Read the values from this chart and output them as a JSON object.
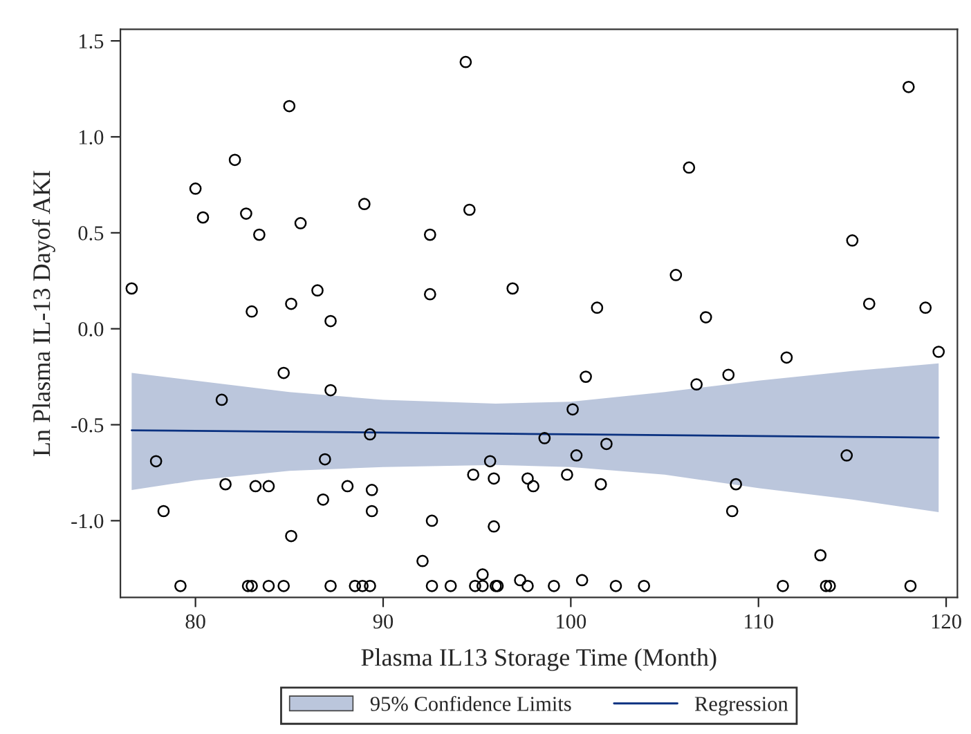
{
  "chart_data": {
    "type": "scatter",
    "xlabel": "Plasma IL13 Storage Time (Month)",
    "ylabel": "Ln Plasma IL-13 Dayof AKI",
    "annotations": [
      "95% Confidence Limits"
    ],
    "xlim": [
      76.0,
      120.6
    ],
    "ylim": [
      -1.4,
      1.56
    ],
    "xticks": [
      80,
      90,
      100,
      110,
      120
    ],
    "yticks": [
      {
        "value": -1,
        "label": "-1.0"
      },
      {
        "value": -0.5,
        "label": "-0.5"
      },
      {
        "value": 0,
        "label": "0.0"
      },
      {
        "value": 0.5,
        "label": "0.5"
      },
      {
        "value": 1,
        "label": "1.0"
      },
      {
        "value": 1.5,
        "label": "1.5"
      }
    ],
    "grid": false,
    "legend": "bottom",
    "series": [
      {
        "color": "#000000",
        "marker": "circle",
        "x": [
          76.6,
          80.0,
          80.4,
          82.1,
          82.7,
          83.4,
          83.0,
          85.0,
          85.6,
          85.1,
          86.5,
          87.2,
          89.0,
          92.5,
          92.5,
          94.4,
          94.6,
          106.3,
          118.0,
          96.9,
          101.4,
          105.6,
          107.2,
          115.0,
          115.9,
          118.9,
          84.7,
          87.2,
          81.4,
          89.3,
          77.9,
          86.9,
          81.6,
          83.2,
          83.9,
          88.1,
          89.4,
          86.8,
          78.3,
          89.4,
          85.1,
          92.6,
          92.1,
          95.3,
          94.8,
          95.7,
          95.9,
          95.9,
          100.1,
          100.8,
          106.7,
          108.4,
          111.5,
          119.6,
          98.6,
          100.3,
          101.9,
          114.7,
          97.7,
          98.0,
          99.8,
          101.6,
          108.8,
          108.6,
          113.3,
          97.3,
          100.6,
          79.2,
          82.8,
          83.0,
          83.9,
          84.7,
          87.2,
          88.5,
          88.9,
          89.3,
          92.6,
          93.6,
          94.9,
          95.3,
          96.0,
          96.1,
          97.7,
          99.1,
          102.4,
          103.9,
          111.3,
          113.6,
          113.8,
          118.1
        ],
        "values": [
          0.21,
          0.73,
          0.58,
          0.88,
          0.6,
          0.49,
          0.09,
          1.16,
          0.55,
          0.13,
          0.2,
          0.04,
          0.65,
          0.49,
          0.18,
          1.39,
          0.62,
          0.84,
          1.26,
          0.21,
          0.11,
          0.28,
          0.06,
          0.46,
          0.13,
          0.11,
          -0.23,
          -0.32,
          -0.37,
          -0.55,
          -0.69,
          -0.68,
          -0.81,
          -0.82,
          -0.82,
          -0.82,
          -0.84,
          -0.89,
          -0.95,
          -0.95,
          -1.08,
          -1.0,
          -1.21,
          -1.28,
          -0.76,
          -0.69,
          -0.78,
          -1.03,
          -0.42,
          -0.25,
          -0.29,
          -0.24,
          -0.15,
          -0.12,
          -0.57,
          -0.66,
          -0.6,
          -0.66,
          -0.78,
          -0.82,
          -0.76,
          -0.81,
          -0.81,
          -0.95,
          -1.18,
          -1.31,
          -1.31,
          -1.34,
          -1.34,
          -1.34,
          -1.34,
          -1.34,
          -1.34,
          -1.34,
          -1.34,
          -1.34,
          -1.34,
          -1.34,
          -1.34,
          -1.34,
          -1.34,
          -1.34,
          -1.34,
          -1.34,
          -1.34,
          -1.34,
          -1.34,
          -1.34,
          -1.34,
          -1.34
        ]
      },
      {
        "type": "line",
        "name": "Regression",
        "color": "#0a3180",
        "marker": "none",
        "x": [
          76.6,
          80,
          85,
          90,
          96,
          100,
          105,
          110,
          115,
          119.6
        ],
        "values": [
          -0.529,
          -0.532,
          -0.536,
          -0.541,
          -0.546,
          -0.55,
          -0.554,
          -0.559,
          -0.563,
          -0.567
        ],
        "lower": [
          -0.84,
          -0.79,
          -0.74,
          -0.72,
          -0.71,
          -0.72,
          -0.76,
          -0.83,
          -0.89,
          -0.955
        ],
        "upper": [
          -0.23,
          -0.27,
          -0.33,
          -0.37,
          -0.39,
          -0.38,
          -0.33,
          -0.27,
          -0.22,
          -0.18
        ]
      }
    ]
  }
}
